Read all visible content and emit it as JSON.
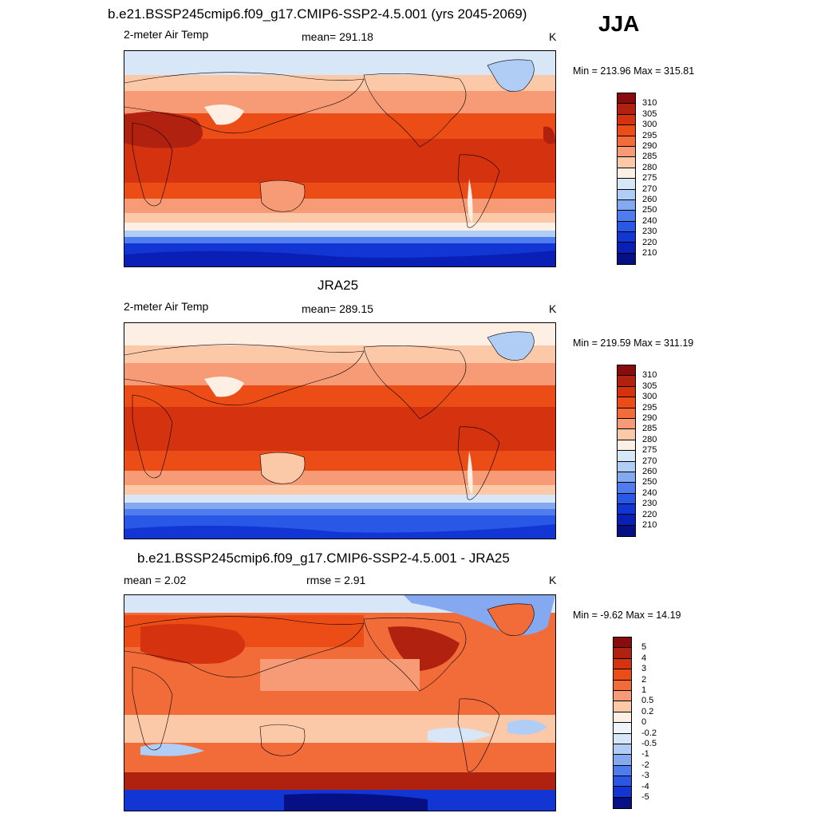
{
  "season": "JJA",
  "panels": [
    {
      "title": "b.e21.BSSP245cmip6.f09_g17.CMIP6-SSP2-4.5.001 (yrs 2045-2069)",
      "left_label": "2-meter Air Temp",
      "center_label": "mean= 291.18",
      "right_label": "K",
      "minmax": "Min = 213.96 Max = 315.81",
      "kind": "abs",
      "colorbar": [
        "310",
        "305",
        "300",
        "295",
        "290",
        "285",
        "280",
        "275",
        "270",
        "260",
        "250",
        "240",
        "230",
        "220",
        "210"
      ]
    },
    {
      "title": "JRA25",
      "left_label": "2-meter Air Temp",
      "center_label": "mean= 289.15",
      "right_label": "K",
      "minmax": "Min = 219.59 Max = 311.19",
      "kind": "abs",
      "colorbar": [
        "310",
        "305",
        "300",
        "295",
        "290",
        "285",
        "280",
        "275",
        "270",
        "260",
        "250",
        "240",
        "230",
        "220",
        "210"
      ]
    },
    {
      "title": "b.e21.BSSP245cmip6.f09_g17.CMIP6-SSP2-4.5.001 - JRA25",
      "left_label": "mean =   2.02",
      "center_label": "rmse =   2.91",
      "right_label": "K",
      "minmax": "Min =  -9.62 Max =  14.19",
      "kind": "diff",
      "colorbar": [
        "5",
        "4",
        "3",
        "2",
        "1",
        "0.5",
        "0.2",
        "0",
        "-0.2",
        "-0.5",
        "-1",
        "-2",
        "-3",
        "-4",
        "-5"
      ]
    }
  ],
  "colors": {
    "abs_scale": [
      "#8a0b0b",
      "#b0210f",
      "#d5330f",
      "#ec4d17",
      "#f26c3a",
      "#f69b76",
      "#fbc8a8",
      "#fdefe3",
      "#d7e7f8",
      "#b0cdf5",
      "#84a9f1",
      "#4f7cee",
      "#2a58e6",
      "#1136d4",
      "#0a1fb6",
      "#070f85"
    ],
    "diff_scale": [
      "#8a0b0b",
      "#b0210f",
      "#d5330f",
      "#ec4d17",
      "#f26c3a",
      "#f69b76",
      "#fbc8a8",
      "#fdefe3",
      "#eef4fc",
      "#d7e7f8",
      "#b0cdf5",
      "#84a9f1",
      "#4f7cee",
      "#2a58e6",
      "#1136d4",
      "#070f85"
    ]
  }
}
